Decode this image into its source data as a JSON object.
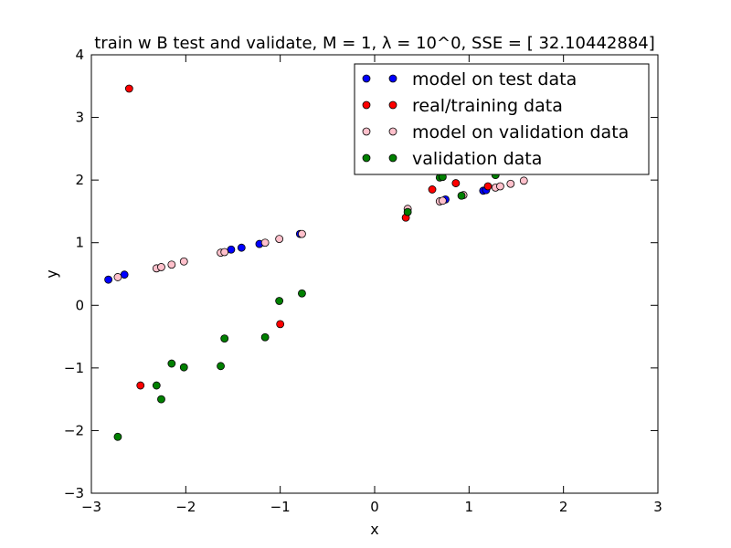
{
  "chart_data": {
    "type": "scatter",
    "title": "train w B test and validate, M = 1, λ = 10^0, SSE = [ 32.10442884]",
    "xlabel": "x",
    "ylabel": "y",
    "xlim": [
      -3,
      3
    ],
    "ylim": [
      -3,
      4
    ],
    "xticks": [
      -3,
      -2,
      -1,
      0,
      1,
      2,
      3
    ],
    "yticks": [
      -3,
      -2,
      -1,
      0,
      1,
      2,
      3,
      4
    ],
    "xtick_labels": [
      "−3",
      "−2",
      "−1",
      "0",
      "1",
      "2",
      "3"
    ],
    "ytick_labels": [
      "−3",
      "−2",
      "−1",
      "0",
      "1",
      "2",
      "3",
      "4"
    ],
    "grid": false,
    "legend_position": "top-right",
    "series": [
      {
        "name": "model on test data",
        "color": "#0000ff",
        "points": [
          [
            -2.82,
            0.41
          ],
          [
            -2.65,
            0.49
          ],
          [
            -1.52,
            0.89
          ],
          [
            -1.41,
            0.92
          ],
          [
            -1.22,
            0.98
          ],
          [
            -0.79,
            1.14
          ],
          [
            0.75,
            1.69
          ],
          [
            1.15,
            1.83
          ],
          [
            1.18,
            1.84
          ]
        ]
      },
      {
        "name": "real/training data",
        "color": "#ff0000",
        "points": [
          [
            -2.6,
            3.46
          ],
          [
            -2.48,
            -1.28
          ],
          [
            -1.0,
            -0.3
          ],
          [
            0.33,
            1.4
          ],
          [
            0.61,
            1.85
          ],
          [
            0.86,
            1.95
          ],
          [
            1.2,
            1.9
          ]
        ]
      },
      {
        "name": "model on validation data",
        "color": "#ffc0cb",
        "points": [
          [
            -2.72,
            0.45
          ],
          [
            -2.31,
            0.59
          ],
          [
            -2.26,
            0.61
          ],
          [
            -2.15,
            0.65
          ],
          [
            -2.02,
            0.7
          ],
          [
            -1.63,
            0.84
          ],
          [
            -1.59,
            0.85
          ],
          [
            -1.16,
            1.0
          ],
          [
            -1.01,
            1.06
          ],
          [
            -0.77,
            1.14
          ],
          [
            0.35,
            1.54
          ],
          [
            0.69,
            1.66
          ],
          [
            0.72,
            1.67
          ],
          [
            0.94,
            1.76
          ],
          [
            1.28,
            1.88
          ],
          [
            1.33,
            1.9
          ],
          [
            1.44,
            1.94
          ],
          [
            1.58,
            1.99
          ]
        ]
      },
      {
        "name": "validation data",
        "color": "#008000",
        "points": [
          [
            -2.72,
            -2.1
          ],
          [
            -2.31,
            -1.28
          ],
          [
            -2.26,
            -1.5
          ],
          [
            -2.15,
            -0.93
          ],
          [
            -2.02,
            -0.99
          ],
          [
            -1.63,
            -0.97
          ],
          [
            -1.59,
            -0.53
          ],
          [
            -1.16,
            -0.51
          ],
          [
            -1.01,
            0.07
          ],
          [
            -0.77,
            0.19
          ],
          [
            0.35,
            1.49
          ],
          [
            0.69,
            2.04
          ],
          [
            0.72,
            2.05
          ],
          [
            0.92,
            1.75
          ],
          [
            1.28,
            2.08
          ]
        ]
      }
    ]
  }
}
